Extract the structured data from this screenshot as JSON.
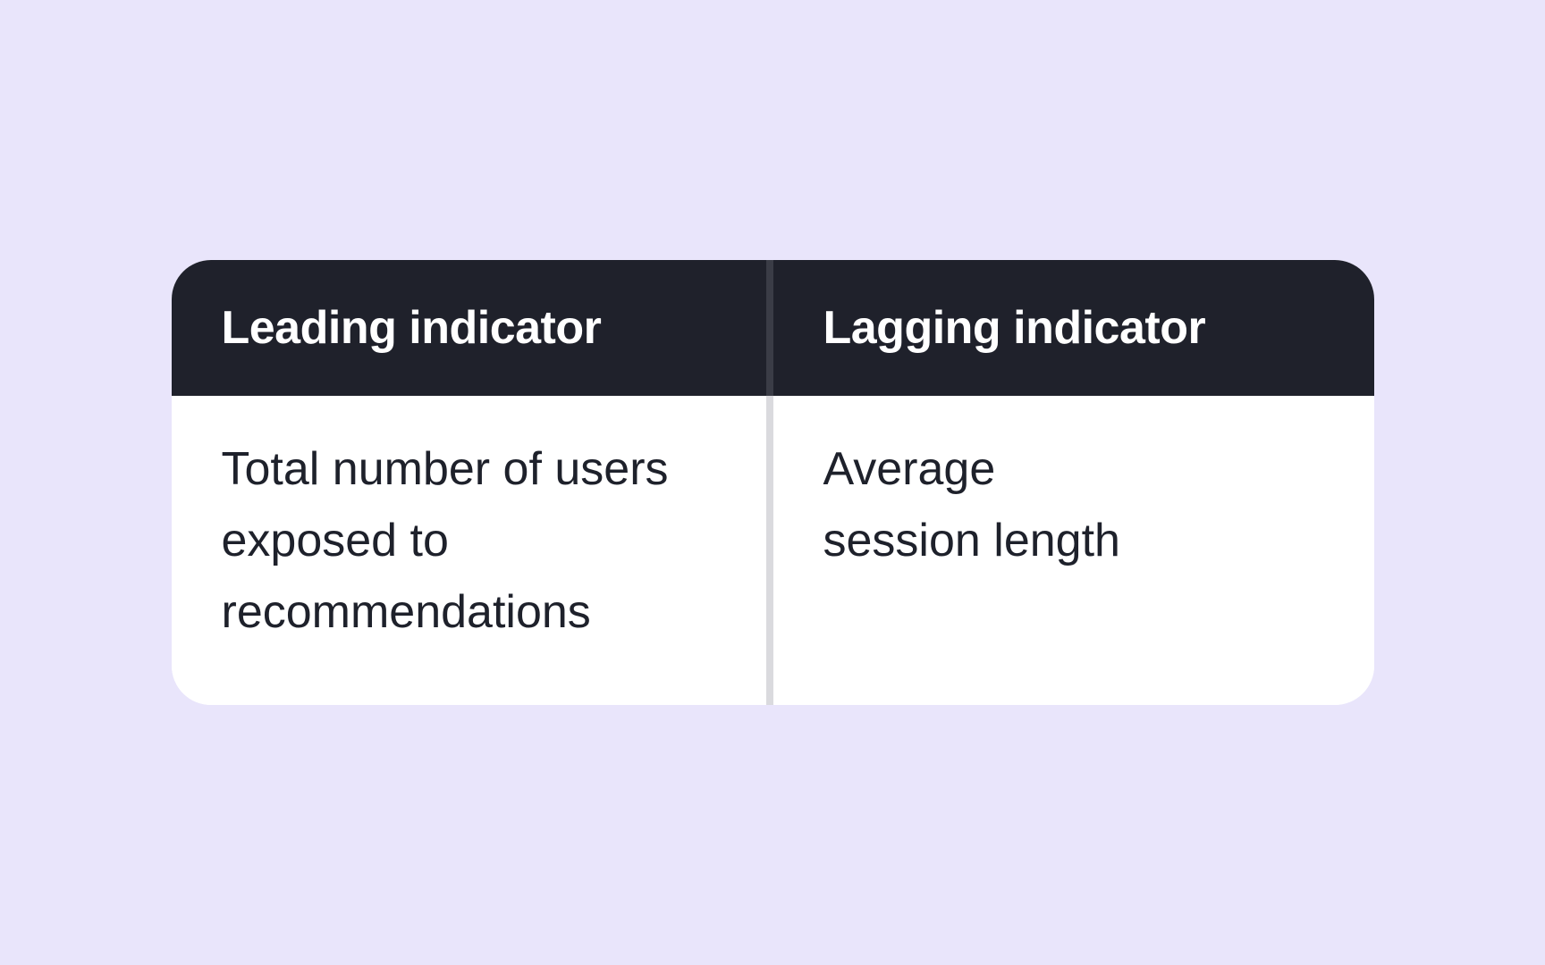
{
  "colors": {
    "page_bg": "#E9E5FB",
    "header_bg": "#1F212B",
    "header_text": "#FFFFFF",
    "body_bg": "#FFFFFF",
    "body_text": "#1E212B",
    "divider_over_header": "#3A3C46",
    "divider_over_body": "#DADADE"
  },
  "table": {
    "columns": [
      {
        "header": "Leading indicator",
        "cell": "Total number of users\nexposed to\nrecommendations"
      },
      {
        "header": "Lagging indicator",
        "cell": "Average\nsession length"
      }
    ]
  }
}
